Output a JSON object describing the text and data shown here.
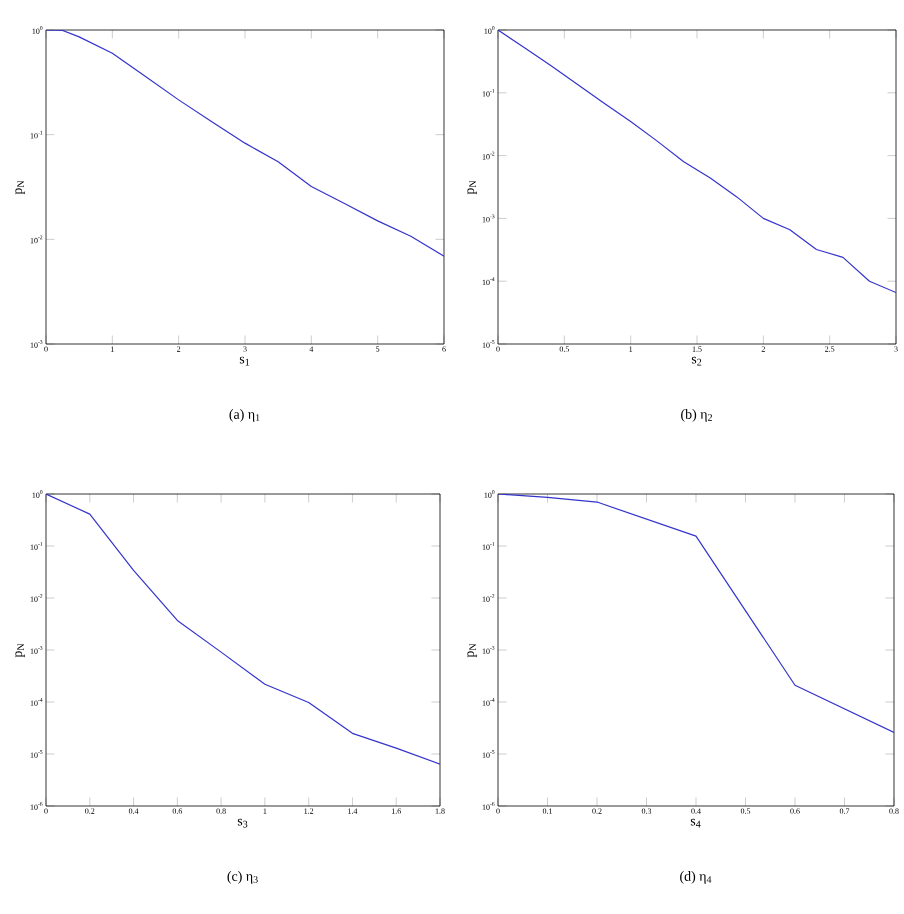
{
  "chart_data": [
    {
      "type": "line",
      "title": "(a) η$_{1}$",
      "xlabel": "s$_{1}$",
      "ylabel": "p$_{N}$",
      "log": "y",
      "x": [
        0,
        0.25,
        0.5,
        1,
        1.5,
        2,
        2.5,
        3,
        3.5,
        4,
        4.5,
        5,
        5.5,
        6
      ],
      "series": [
        {
          "color": "#3333cc",
          "values": [
            1.0,
            0.99,
            0.86,
            0.6,
            0.36,
            0.215,
            0.133,
            0.083,
            0.055,
            0.032,
            0.022,
            0.015,
            0.0107,
            0.0069
          ]
        }
      ],
      "xlim": [
        0,
        6
      ],
      "ylim": [
        0.001,
        1
      ],
      "xticks": [
        0,
        1,
        2,
        3,
        4,
        5,
        6
      ],
      "yticks": [
        {
          "value": 1,
          "label": "10$^{0}$"
        },
        {
          "value": 0.1,
          "label": "10$^{-1}$"
        },
        {
          "value": 0.01,
          "label": "10$^{-2}$"
        },
        {
          "value": 0.001,
          "label": "10$^{-3}$"
        }
      ]
    },
    {
      "type": "line",
      "title": "(b) η$_{2}$",
      "xlabel": "s$_{2}$",
      "ylabel": "p$_{N}$",
      "log": "y",
      "x": [
        0,
        0.2,
        0.4,
        0.6,
        0.8,
        1.0,
        1.2,
        1.4,
        1.6,
        1.8,
        2.0,
        2.2,
        2.4,
        2.6,
        2.8,
        3.0
      ],
      "series": [
        {
          "color": "#3333cc",
          "values": [
            1.0,
            0.52,
            0.27,
            0.135,
            0.068,
            0.035,
            0.017,
            0.008,
            0.0044,
            0.0022,
            0.001,
            0.00066,
            0.00032,
            0.00024,
            0.0001,
            6.6e-05
          ]
        }
      ],
      "xlim": [
        0,
        3
      ],
      "ylim": [
        1e-05,
        1
      ],
      "xticks": [
        0,
        0.5,
        1,
        1.5,
        2,
        2.5,
        3
      ],
      "yticks": [
        {
          "value": 1,
          "label": "10$^{0}$"
        },
        {
          "value": 0.1,
          "label": "10$^{-1}$"
        },
        {
          "value": 0.01,
          "label": "10$^{-2}$"
        },
        {
          "value": 0.001,
          "label": "10$^{-3}$"
        },
        {
          "value": 0.0001,
          "label": "10$^{-4}$"
        },
        {
          "value": 1e-05,
          "label": "10$^{-5}$"
        }
      ]
    },
    {
      "type": "line",
      "title": "(c) η$_{3}$",
      "xlabel": "s$_{3}$",
      "ylabel": "p$_{N}$",
      "log": "y",
      "x": [
        0,
        0.2,
        0.4,
        0.6,
        0.8,
        1.0,
        1.2,
        1.4,
        1.6,
        1.8
      ],
      "series": [
        {
          "color": "#3333cc",
          "values": [
            1.0,
            0.41,
            0.034,
            0.0037,
            0.00091,
            0.00022,
            9.8e-05,
            2.5e-05,
            1.3e-05,
            6.4e-06
          ]
        }
      ],
      "xlim": [
        0,
        1.8
      ],
      "ylim": [
        1e-06,
        1
      ],
      "xticks": [
        0,
        0.2,
        0.4,
        0.6,
        0.8,
        1,
        1.2,
        1.4,
        1.6,
        1.8
      ],
      "yticks": [
        {
          "value": 1,
          "label": "10$^{0}$"
        },
        {
          "value": 0.1,
          "label": "10$^{-1}$"
        },
        {
          "value": 0.01,
          "label": "10$^{-2}$"
        },
        {
          "value": 0.001,
          "label": "10$^{-3}$"
        },
        {
          "value": 0.0001,
          "label": "10$^{-4}$"
        },
        {
          "value": 1e-05,
          "label": "10$^{-5}$"
        },
        {
          "value": 1e-06,
          "label": "10$^{-6}$"
        }
      ]
    },
    {
      "type": "line",
      "title": "(d) η$_{4}$",
      "xlabel": "s$_{4}$",
      "ylabel": "p$_{N}$",
      "log": "y",
      "x": [
        0,
        0.1,
        0.2,
        0.4,
        0.6,
        0.8
      ],
      "series": [
        {
          "color": "#3333cc",
          "values": [
            1.0,
            0.86,
            0.7,
            0.155,
            0.00021,
            2.6e-05
          ]
        }
      ],
      "xlim": [
        0,
        0.8
      ],
      "ylim": [
        1e-06,
        1
      ],
      "xticks": [
        0,
        0.1,
        0.2,
        0.3,
        0.4,
        0.5,
        0.6,
        0.7,
        0.8
      ],
      "yticks": [
        {
          "value": 1,
          "label": "10$^{0}$"
        },
        {
          "value": 0.1,
          "label": "10$^{-1}$"
        },
        {
          "value": 0.01,
          "label": "10$^{-2}$"
        },
        {
          "value": 0.001,
          "label": "10$^{-3}$"
        },
        {
          "value": 0.0001,
          "label": "10$^{-4}$"
        },
        {
          "value": 1e-05,
          "label": "10$^{-5}$"
        },
        {
          "value": 1e-06,
          "label": "10$^{-6}$"
        }
      ]
    }
  ]
}
